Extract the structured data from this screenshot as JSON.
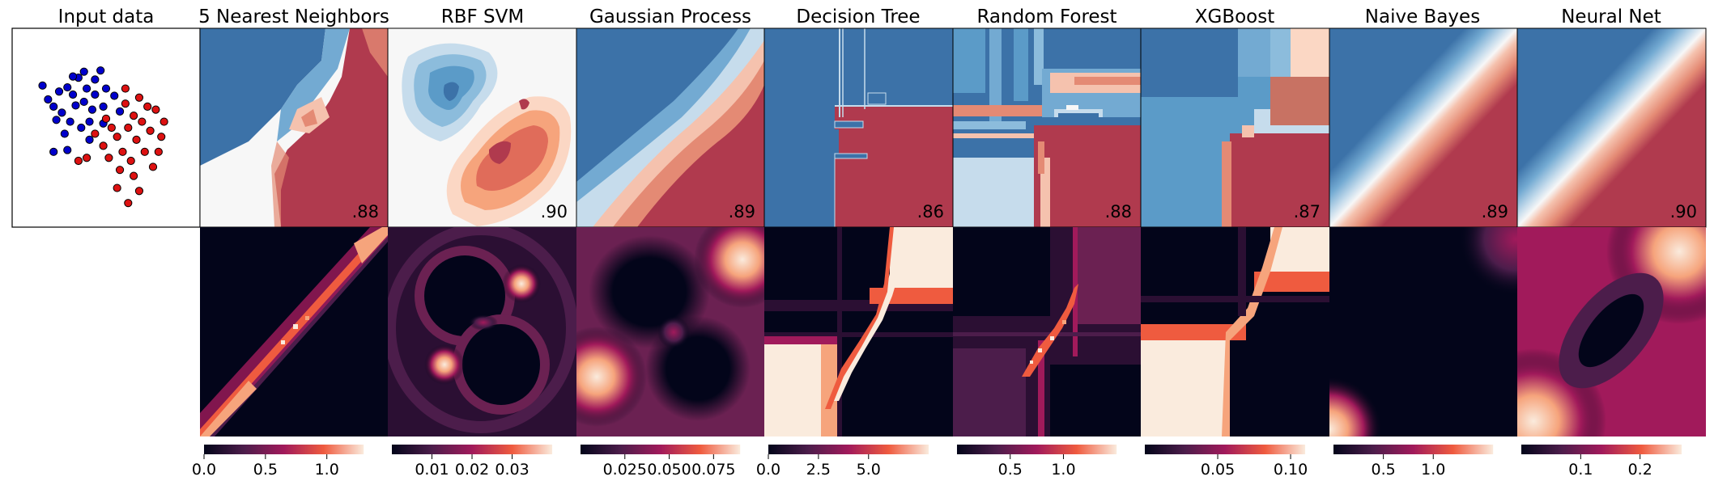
{
  "chart_data": {
    "type": "heatmap",
    "figure": "classifier-comparison",
    "input_panel": {
      "title": "Input data",
      "points": {
        "blue": [
          [
            -1.05,
            0.65
          ],
          [
            -0.75,
            0.55
          ],
          [
            -0.95,
            0.42
          ],
          [
            -0.6,
            0.62
          ],
          [
            -0.85,
            0.3
          ],
          [
            -0.7,
            0.2
          ],
          [
            -0.5,
            0.5
          ],
          [
            -0.4,
            0.78
          ],
          [
            -0.3,
            0.38
          ],
          [
            -0.55,
            0.05
          ],
          [
            -0.25,
            0.6
          ],
          [
            -0.15,
            0.25
          ],
          [
            -0.35,
            -0.05
          ],
          [
            -0.65,
            -0.15
          ],
          [
            -0.1,
            0.5
          ],
          [
            0.05,
            0.3
          ],
          [
            -0.2,
            0.05
          ],
          [
            -0.45,
            0.32
          ],
          [
            0.1,
            0.6
          ],
          [
            0.05,
            0.02
          ],
          [
            -0.85,
            -0.45
          ],
          [
            -0.6,
            -0.42
          ],
          [
            -0.3,
            0.88
          ],
          [
            -0.1,
            0.75
          ],
          [
            0.25,
            0.48
          ],
          [
            -0.8,
            0.08
          ],
          [
            -0.2,
            -0.25
          ],
          [
            0.0,
            0.9
          ],
          [
            0.35,
            0.22
          ],
          [
            -0.5,
            0.8
          ]
        ],
        "red": [
          [
            0.45,
            0.35
          ],
          [
            0.6,
            0.15
          ],
          [
            0.5,
            -0.05
          ],
          [
            0.75,
            0.05
          ],
          [
            0.3,
            -0.2
          ],
          [
            0.65,
            -0.25
          ],
          [
            0.9,
            -0.1
          ],
          [
            0.4,
            -0.45
          ],
          [
            0.8,
            -0.45
          ],
          [
            0.55,
            -0.6
          ],
          [
            1.0,
            0.25
          ],
          [
            1.1,
            -0.2
          ],
          [
            0.2,
            -0.05
          ],
          [
            0.05,
            -0.35
          ],
          [
            -0.1,
            -0.15
          ],
          [
            0.7,
            0.45
          ],
          [
            0.95,
            -0.7
          ],
          [
            0.6,
            -0.85
          ],
          [
            0.35,
            -0.75
          ],
          [
            0.15,
            -0.55
          ],
          [
            0.85,
            0.3
          ],
          [
            1.15,
            0.05
          ],
          [
            0.45,
            0.6
          ],
          [
            -0.25,
            -0.55
          ],
          [
            0.3,
            -1.05
          ],
          [
            0.7,
            -1.1
          ],
          [
            0.1,
            0.1
          ],
          [
            0.5,
            -1.3
          ],
          [
            1.05,
            -0.45
          ],
          [
            -0.4,
            -0.6
          ]
        ]
      }
    },
    "classifiers": [
      {
        "title": "5 Nearest Neighbors",
        "score": ".88"
      },
      {
        "title": "RBF SVM",
        "score": ".90"
      },
      {
        "title": "Gaussian Process",
        "score": ".89"
      },
      {
        "title": "Decision Tree",
        "score": ".86"
      },
      {
        "title": "Random Forest",
        "score": ".88"
      },
      {
        "title": "XGBoost",
        "score": ".87"
      },
      {
        "title": "Naive Bayes",
        "score": ".89"
      },
      {
        "title": "Neural Net",
        "score": ".90"
      }
    ],
    "colorbars": [
      {
        "range": [
          0.0,
          1.3
        ],
        "ticks": [
          0.0,
          0.5,
          1.0
        ],
        "tick_labels": [
          "0.0",
          "0.5",
          "1.0"
        ]
      },
      {
        "range": [
          0.0,
          0.04
        ],
        "ticks": [
          0.01,
          0.02,
          0.03
        ],
        "tick_labels": [
          "0.01",
          "0.02",
          "0.03"
        ]
      },
      {
        "range": [
          0.0,
          0.09
        ],
        "ticks": [
          0.025,
          0.05,
          0.075
        ],
        "tick_labels": [
          "0.025",
          "0.050",
          "0.075"
        ]
      },
      {
        "range": [
          0.0,
          8.0
        ],
        "ticks": [
          0.0,
          2.5,
          5.0
        ],
        "tick_labels": [
          "0.0",
          "2.5",
          "5.0"
        ]
      },
      {
        "range": [
          0.0,
          1.5
        ],
        "ticks": [
          0.5,
          1.0
        ],
        "tick_labels": [
          "0.5",
          "1.0"
        ]
      },
      {
        "range": [
          0.0,
          0.11
        ],
        "ticks": [
          0.05,
          0.1
        ],
        "tick_labels": [
          "0.05",
          "0.10"
        ]
      },
      {
        "range": [
          0.0,
          1.6
        ],
        "ticks": [
          0.5,
          1.0
        ],
        "tick_labels": [
          "0.5",
          "1.0"
        ]
      },
      {
        "range": [
          0.0,
          0.27
        ],
        "ticks": [
          0.1,
          0.2
        ],
        "tick_labels": [
          "0.1",
          "0.2"
        ]
      }
    ],
    "colors": {
      "class_blue": "#0000cc",
      "class_red": "#dd1111",
      "region_blue": "#3c72a8",
      "region_red": "#b03a4e",
      "region_white": "#f7f7f7",
      "heat_low": "#03051a",
      "heat_mid": "#a11a5b",
      "heat_high": "#faebdd"
    }
  }
}
